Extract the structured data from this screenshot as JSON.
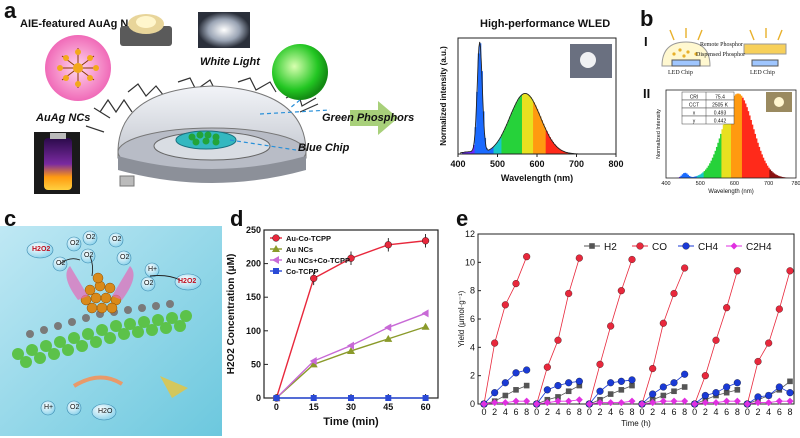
{
  "panels": {
    "a": {
      "label": "a",
      "aie_title": "AIE-featured AuAg NCs",
      "auag_label": "AuAg NCs",
      "white_light": "White Light",
      "green_phosphors": "Green Phosphors",
      "blue_chip": "Blue Chip",
      "wled_title": "High-performance WLED"
    },
    "b": {
      "label": "b",
      "sub1": "I",
      "sub2": "II",
      "remote_phosphor": "Remote Phosphor",
      "dispensed_phosphor": "Dispensed Phosphor",
      "led_chip_left": "LED Chip",
      "led_chip_right": "LED Chip",
      "table": [
        [
          "CRI",
          "75.4"
        ],
        [
          "CCT",
          "2505 K"
        ],
        [
          "x",
          "0.493"
        ],
        [
          "y",
          "0.442"
        ]
      ]
    },
    "c": {
      "label": "c",
      "molecules": [
        "H2O2",
        "O2",
        "O2",
        "O2",
        "O2",
        "O2",
        "O2",
        "H+",
        "O2",
        "H2O2",
        "H+",
        "O2",
        "H2O"
      ]
    },
    "d": {
      "label": "d"
    },
    "e": {
      "label": "e"
    }
  },
  "chart_data": [
    {
      "id": "a-spectrum",
      "type": "line",
      "title": "",
      "xlabel": "Wavelength (nm)",
      "ylabel": "Normalized intensity (a.u.)",
      "xlim": [
        400,
        800
      ],
      "xticks": [
        400,
        500,
        600,
        700,
        800
      ],
      "peaks": [
        {
          "x": 455,
          "y": 1.0
        },
        {
          "x": 570,
          "y": 0.55
        }
      ]
    },
    {
      "id": "b-spectrum",
      "type": "line",
      "xlabel": "Wavelength (nm)",
      "ylabel": "Normalized Intensity",
      "xlim": [
        400,
        780
      ],
      "xticks": [
        400,
        500,
        600,
        700,
        780
      ],
      "peaks": [
        {
          "x": 610,
          "y": 1.0
        }
      ]
    },
    {
      "id": "d-h2o2",
      "type": "line",
      "xlabel": "Time (min)",
      "ylabel": "H2O2 Concentration (μM)",
      "xlim": [
        -5,
        65
      ],
      "ylim": [
        0,
        250
      ],
      "xticks": [
        0,
        15,
        30,
        45,
        60
      ],
      "yticks": [
        0,
        50,
        100,
        150,
        200,
        250
      ],
      "x": [
        0,
        15,
        30,
        45,
        60
      ],
      "series": [
        {
          "name": "Au-Co-TCPP",
          "color": "#e8283c",
          "marker": "circle",
          "values": [
            0,
            178,
            208,
            228,
            234
          ]
        },
        {
          "name": "Au NCs",
          "color": "#8a9a2a",
          "marker": "triangle",
          "values": [
            0,
            50,
            70,
            88,
            106
          ]
        },
        {
          "name": "Au NCs+Co-TCPP",
          "color": "#c86ad6",
          "marker": "triangle-left",
          "values": [
            0,
            55,
            78,
            105,
            126
          ]
        },
        {
          "name": "Co-TCPP",
          "color": "#2a4ad6",
          "marker": "square",
          "values": [
            0,
            0,
            0,
            0,
            0
          ]
        }
      ]
    },
    {
      "id": "e-yield",
      "type": "scatter",
      "xlabel": "Time (h)",
      "ylabel": "Yield (μmol·g⁻¹)",
      "ylim": [
        0,
        12
      ],
      "yticks": [
        0,
        2,
        4,
        6,
        8,
        10,
        12
      ],
      "xticks_per_cycle": [
        "0",
        "2",
        "4",
        "6",
        "8"
      ],
      "cycles": 6,
      "legend": [
        "H2",
        "CO",
        "CH4",
        "C2H4"
      ],
      "series": [
        {
          "name": "H2",
          "color": "#555555",
          "marker": "square",
          "cycles": [
            [
              0.2,
              0.6,
              1.0,
              1.3
            ],
            [
              0.3,
              0.5,
              0.9,
              1.3
            ],
            [
              0.3,
              0.7,
              1.0,
              1.3
            ],
            [
              0.3,
              0.6,
              0.9,
              1.2
            ],
            [
              0.3,
              0.6,
              0.8,
              1.0
            ],
            [
              0.3,
              0.6,
              1.0,
              1.6
            ]
          ]
        },
        {
          "name": "CO",
          "color": "#e8283c",
          "marker": "circle",
          "cycles": [
            [
              4.3,
              7.0,
              8.5,
              10.4
            ],
            [
              2.6,
              4.5,
              7.8,
              10.3
            ],
            [
              2.8,
              5.5,
              8.0,
              10.2
            ],
            [
              2.5,
              5.7,
              7.8,
              9.6
            ],
            [
              2.0,
              4.5,
              6.8,
              9.4
            ],
            [
              3.0,
              4.3,
              6.7,
              9.4
            ]
          ]
        },
        {
          "name": "CH4",
          "color": "#1a3ad6",
          "marker": "circle",
          "cycles": [
            [
              0.8,
              1.5,
              2.2,
              2.4
            ],
            [
              1.0,
              1.3,
              1.5,
              1.6
            ],
            [
              0.9,
              1.5,
              1.6,
              1.7
            ],
            [
              0.7,
              1.2,
              1.5,
              2.1
            ],
            [
              0.6,
              0.8,
              1.2,
              1.5
            ],
            [
              0.5,
              0.6,
              1.2,
              0.8
            ]
          ]
        },
        {
          "name": "C2H4",
          "color": "#e030e0",
          "marker": "diamond",
          "cycles": [
            [
              0.1,
              0.1,
              0.2,
              0.2
            ],
            [
              0.1,
              0.2,
              0.2,
              0.3
            ],
            [
              0.1,
              0.1,
              0.1,
              0.2
            ],
            [
              0.1,
              0.2,
              0.2,
              0.2
            ],
            [
              0.1,
              0.1,
              0.2,
              0.2
            ],
            [
              0.1,
              0.1,
              0.2,
              0.2
            ]
          ]
        }
      ]
    }
  ]
}
